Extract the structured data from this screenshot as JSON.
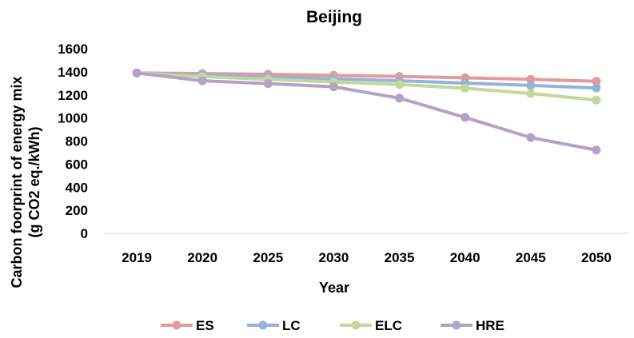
{
  "chart_data": {
    "type": "line",
    "title": "Beijing",
    "xlabel": "Year",
    "ylabel_lines": [
      "Carbon foorprint of energy mix",
      "(g CO2 eq./kWh)"
    ],
    "categories": [
      "2019",
      "2020",
      "2025",
      "2030",
      "2035",
      "2040",
      "2045",
      "2050"
    ],
    "ylim": [
      0,
      1600
    ],
    "yticks": [
      "0",
      "200",
      "400",
      "600",
      "800",
      "1000",
      "1200",
      "1400",
      "1600"
    ],
    "grid": false,
    "legend_position": "bottom",
    "series": [
      {
        "name": "ES",
        "color": "#E39A9A",
        "values": [
          1390,
          1385,
          1378,
          1370,
          1360,
          1348,
          1335,
          1318
        ]
      },
      {
        "name": "LC",
        "color": "#95B3D7",
        "values": [
          1390,
          1370,
          1355,
          1340,
          1322,
          1302,
          1282,
          1260
        ]
      },
      {
        "name": "ELC",
        "color": "#C3D69B",
        "values": [
          1390,
          1358,
          1335,
          1312,
          1290,
          1258,
          1212,
          1155
        ]
      },
      {
        "name": "HRE",
        "color": "#B3A2C7",
        "values": [
          1390,
          1322,
          1298,
          1270,
          1172,
          1005,
          830,
          722
        ]
      }
    ]
  }
}
